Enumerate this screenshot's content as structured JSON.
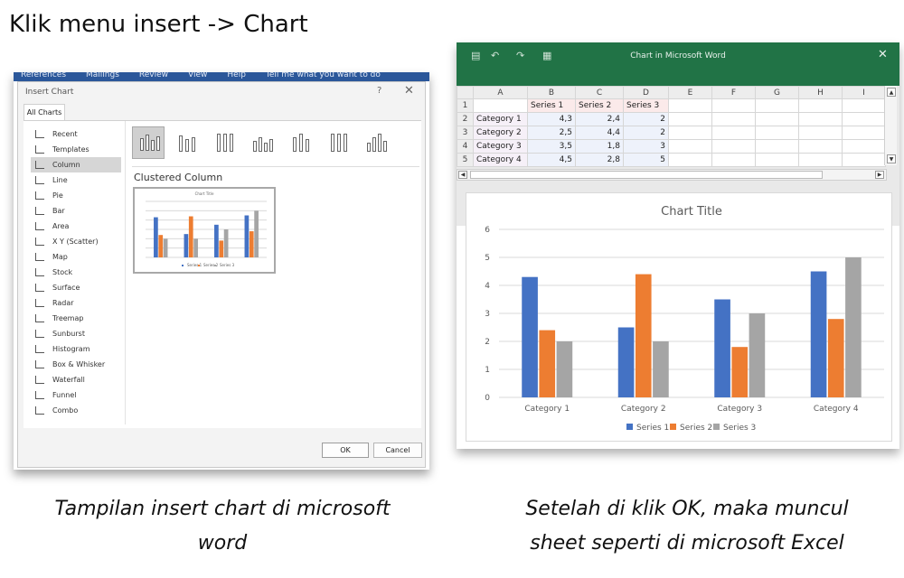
{
  "heading": "Klik menu insert -> Chart",
  "captions": {
    "left_line1": "Tampilan insert chart di microsoft",
    "left_line2": "word",
    "right_line1": "Setelah di klik OK, maka muncul",
    "right_line2": "sheet seperti di microsoft Excel"
  },
  "word": {
    "ribbon_items": [
      "References",
      "Mailings",
      "Review",
      "View",
      "Help",
      "Tell me what you want to do"
    ],
    "dialog_title": "Insert Chart",
    "help_label": "?",
    "close_label": "✕",
    "tab_label": "All Charts",
    "categories": [
      {
        "label": "Recent",
        "icon": "recent-icon"
      },
      {
        "label": "Templates",
        "icon": "folder-icon"
      },
      {
        "label": "Column",
        "icon": "column-chart-icon"
      },
      {
        "label": "Line",
        "icon": "line-chart-icon"
      },
      {
        "label": "Pie",
        "icon": "pie-chart-icon"
      },
      {
        "label": "Bar",
        "icon": "bar-chart-icon"
      },
      {
        "label": "Area",
        "icon": "area-chart-icon"
      },
      {
        "label": "X Y (Scatter)",
        "icon": "scatter-chart-icon"
      },
      {
        "label": "Map",
        "icon": "map-chart-icon"
      },
      {
        "label": "Stock",
        "icon": "stock-chart-icon"
      },
      {
        "label": "Surface",
        "icon": "surface-chart-icon"
      },
      {
        "label": "Radar",
        "icon": "radar-chart-icon"
      },
      {
        "label": "Treemap",
        "icon": "treemap-chart-icon"
      },
      {
        "label": "Sunburst",
        "icon": "sunburst-chart-icon"
      },
      {
        "label": "Histogram",
        "icon": "histogram-chart-icon"
      },
      {
        "label": "Box & Whisker",
        "icon": "box-whisker-chart-icon"
      },
      {
        "label": "Waterfall",
        "icon": "waterfall-chart-icon"
      },
      {
        "label": "Funnel",
        "icon": "funnel-chart-icon"
      },
      {
        "label": "Combo",
        "icon": "combo-chart-icon"
      }
    ],
    "selected_category": "Column",
    "subtype_label": "Clustered Column",
    "thumbnail_title": "Chart Title",
    "ok_label": "OK",
    "cancel_label": "Cancel"
  },
  "excel": {
    "window_title": "Chart in Microsoft Word",
    "close_label": "✕",
    "column_headers": [
      "A",
      "B",
      "C",
      "D",
      "E",
      "F",
      "G",
      "H",
      "I"
    ],
    "rows": [
      {
        "num": "1",
        "a": "",
        "b": "Series 1",
        "c": "Series 2",
        "d": "Series 3"
      },
      {
        "num": "2",
        "a": "Category 1",
        "b": "4,3",
        "c": "2,4",
        "d": "2"
      },
      {
        "num": "3",
        "a": "Category 2",
        "b": "2,5",
        "c": "4,4",
        "d": "2"
      },
      {
        "num": "4",
        "a": "Category 3",
        "b": "3,5",
        "c": "1,8",
        "d": "3"
      },
      {
        "num": "5",
        "a": "Category 4",
        "b": "4,5",
        "c": "2,8",
        "d": "5"
      }
    ]
  },
  "chart_data": {
    "type": "bar",
    "title": "Chart Title",
    "categories": [
      "Category 1",
      "Category 2",
      "Category 3",
      "Category 4"
    ],
    "series": [
      {
        "name": "Series 1",
        "values": [
          4.3,
          2.5,
          3.5,
          4.5
        ],
        "color": "#4472c4"
      },
      {
        "name": "Series 2",
        "values": [
          2.4,
          4.4,
          1.8,
          2.8
        ],
        "color": "#ed7d31"
      },
      {
        "name": "Series 3",
        "values": [
          2,
          2,
          3,
          5
        ],
        "color": "#a5a5a5"
      }
    ],
    "ylim": [
      0,
      6
    ],
    "yticks": [
      "0",
      "1",
      "2",
      "3",
      "4",
      "5",
      "6"
    ],
    "grid": true,
    "legend_position": "bottom"
  }
}
